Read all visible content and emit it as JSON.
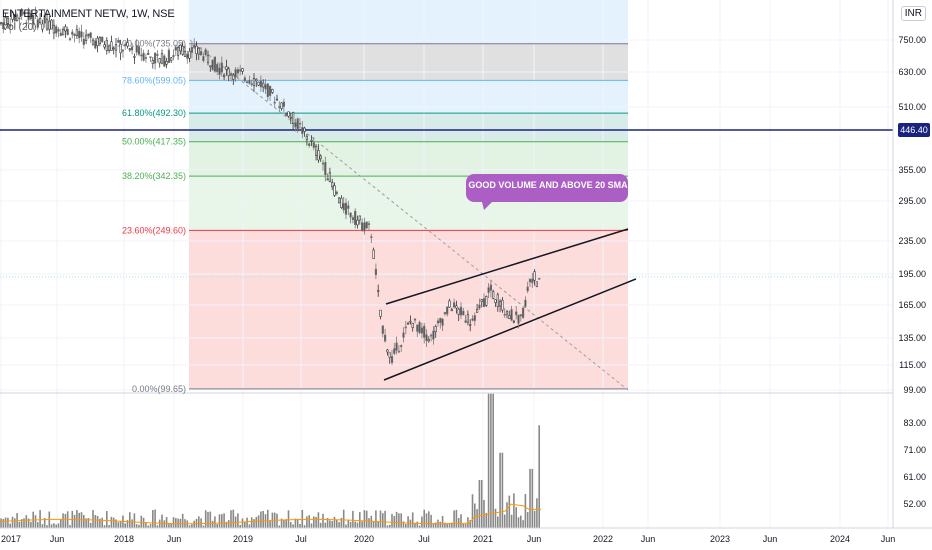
{
  "header": {
    "ticker": "ENTERTAINMENT NETW, 1W, NSE",
    "indicator": "Vol (20)",
    "currency": "INR"
  },
  "chart_data": {
    "type": "candlestick",
    "price_axis_labels": [
      "750.00",
      "630.00",
      "510.00",
      "446.40",
      "355.00",
      "295.00",
      "235.00",
      "195.00",
      "165.00",
      "135.00",
      "115.00",
      "99.00"
    ],
    "volume_axis_labels": [
      "83.00",
      "71.00",
      "61.00",
      "52.00"
    ],
    "time_axis_labels": [
      "2017",
      "Jun",
      "2018",
      "Jun",
      "2019",
      "Jul",
      "2020",
      "Jul",
      "2021",
      "Jun",
      "2022",
      "Jun",
      "2023",
      "Jun",
      "2024",
      "Jun"
    ],
    "last_price": 446.4,
    "last_price_label": "446.40",
    "fibonacci": [
      {
        "label": "100.00%(735.05)",
        "value": 735.05,
        "color": "#787b86"
      },
      {
        "label": "78.60%(599.05)",
        "value": 599.05,
        "color": "#64b5f6"
      },
      {
        "label": "61.80%(492.30)",
        "value": 492.3,
        "color": "#089981"
      },
      {
        "label": "50.00%(417.35)",
        "value": 417.35,
        "color": "#4caf50"
      },
      {
        "label": "38.20%(342.35)",
        "value": 342.35,
        "color": "#4caf50"
      },
      {
        "label": "23.60%(249.60)",
        "value": 249.6,
        "color": "#f23645"
      },
      {
        "label": "0.00%(99.65)",
        "value": 99.65,
        "color": "#787b86"
      }
    ],
    "annotation": "GOOD VOLUME AND ABOVE 20 SMA",
    "price_path": [
      [
        "2017-01",
        820
      ],
      [
        "2017-03",
        860
      ],
      [
        "2017-05",
        830
      ],
      [
        "2017-07",
        800
      ],
      [
        "2017-09",
        760
      ],
      [
        "2017-11",
        740
      ],
      [
        "2018-01",
        720
      ],
      [
        "2018-03",
        700
      ],
      [
        "2018-05",
        670
      ],
      [
        "2018-07",
        710
      ],
      [
        "2018-09",
        700
      ],
      [
        "2018-11",
        640
      ],
      [
        "2019-01",
        620
      ],
      [
        "2019-03",
        590
      ],
      [
        "2019-05",
        520
      ],
      [
        "2019-07",
        450
      ],
      [
        "2019-09",
        380
      ],
      [
        "2019-11",
        290
      ],
      [
        "2020-01",
        260
      ],
      [
        "2020-02",
        250
      ],
      [
        "2020-03",
        150
      ],
      [
        "2020-04",
        118
      ],
      [
        "2020-06",
        150
      ],
      [
        "2020-08",
        135
      ],
      [
        "2020-10",
        165
      ],
      [
        "2020-12",
        150
      ],
      [
        "2021-02",
        178
      ],
      [
        "2021-04",
        155
      ],
      [
        "2021-05",
        150
      ],
      [
        "2021-06",
        195
      ],
      [
        "2021-07",
        183
      ]
    ],
    "volume_spikes": [
      [
        "2021-01",
        60
      ],
      [
        "2021-02",
        96
      ],
      [
        "2021-03",
        70
      ],
      [
        "2021-06",
        64
      ],
      [
        "2021-07",
        82
      ],
      [
        "2021-08",
        56
      ]
    ]
  }
}
